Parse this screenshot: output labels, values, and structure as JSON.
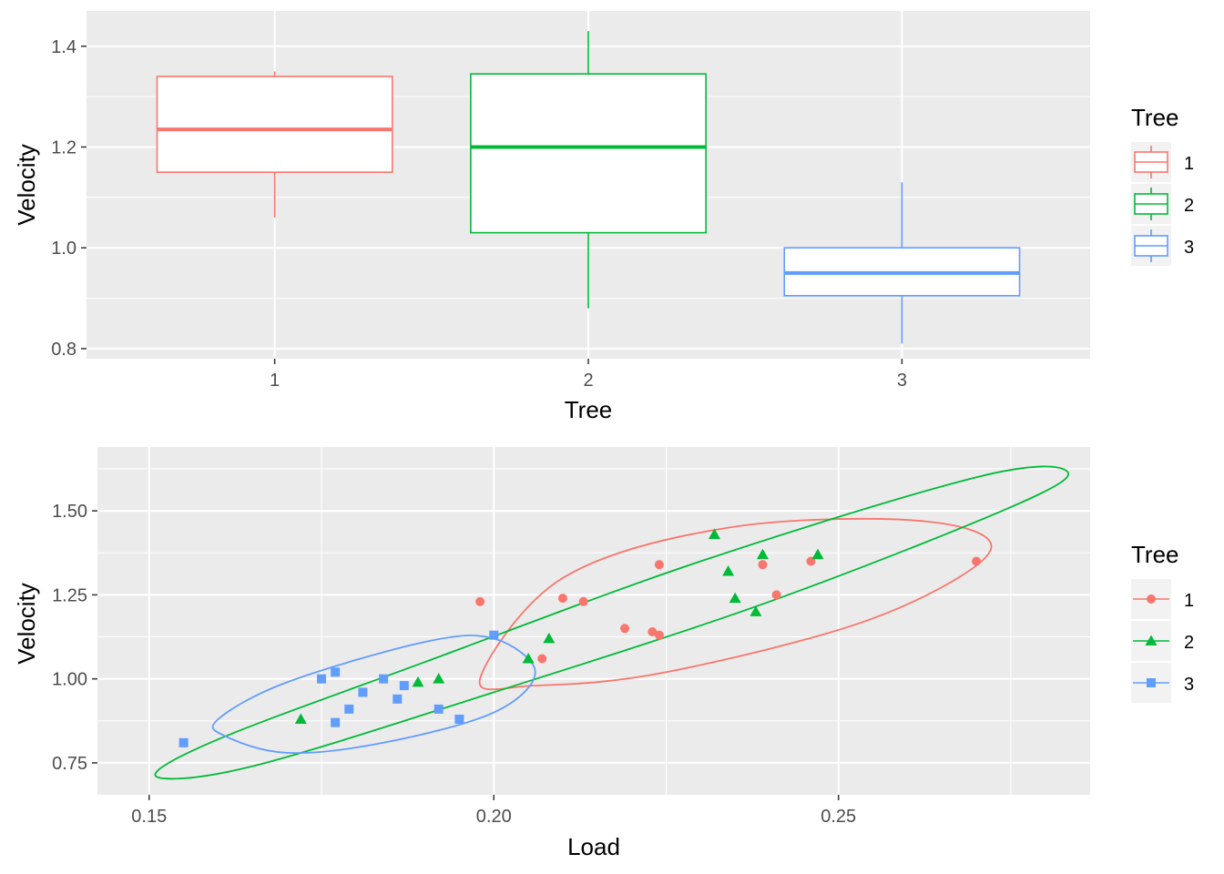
{
  "colors": {
    "1": "#F8766D",
    "2": "#00BA38",
    "3": "#619CFF",
    "panel": "#EBEBEB",
    "grid": "#FFFFFF",
    "axis_text": "#4D4D4D"
  },
  "chart_data": [
    {
      "type": "box",
      "xlabel": "Tree",
      "ylabel": "Velocity",
      "categories": [
        "1",
        "2",
        "3"
      ],
      "ylim": [
        0.78,
        1.47
      ],
      "y_ticks": [
        {
          "value": 0.8,
          "label": "0.8"
        },
        {
          "value": 1.0,
          "label": "1.0"
        },
        {
          "value": 1.2,
          "label": "1.2"
        },
        {
          "value": 1.4,
          "label": "1.4"
        }
      ],
      "boxes": [
        {
          "category": "1",
          "min": 1.06,
          "q1": 1.15,
          "median": 1.235,
          "q3": 1.34,
          "max": 1.35
        },
        {
          "category": "2",
          "min": 0.88,
          "q1": 1.03,
          "median": 1.2,
          "q3": 1.345,
          "max": 1.43
        },
        {
          "category": "3",
          "min": 0.81,
          "q1": 0.905,
          "median": 0.95,
          "q3": 1.0,
          "max": 1.13
        }
      ],
      "legend": {
        "title": "Tree",
        "entries": [
          "1",
          "2",
          "3"
        ],
        "position": "right"
      }
    },
    {
      "type": "scatter",
      "xlabel": "Load",
      "ylabel": "Velocity",
      "xlim": [
        0.1425,
        0.2865
      ],
      "ylim": [
        0.655,
        1.69
      ],
      "x_ticks": [
        {
          "value": 0.15,
          "label": "0.15"
        },
        {
          "value": 0.2,
          "label": "0.20"
        },
        {
          "value": 0.25,
          "label": "0.25"
        }
      ],
      "y_ticks": [
        {
          "value": 0.75,
          "label": "0.75"
        },
        {
          "value": 1.0,
          "label": "1.00"
        },
        {
          "value": 1.25,
          "label": "1.25"
        },
        {
          "value": 1.5,
          "label": "1.50"
        }
      ],
      "series": [
        {
          "name": "1",
          "shape": "circle",
          "points": [
            [
              0.198,
              1.23
            ],
            [
              0.207,
              1.06
            ],
            [
              0.21,
              1.24
            ],
            [
              0.213,
              1.23
            ],
            [
              0.219,
              1.15
            ],
            [
              0.223,
              1.14
            ],
            [
              0.224,
              1.13
            ],
            [
              0.224,
              1.34
            ],
            [
              0.239,
              1.34
            ],
            [
              0.241,
              1.25
            ],
            [
              0.246,
              1.35
            ],
            [
              0.27,
              1.35
            ]
          ]
        },
        {
          "name": "2",
          "shape": "triangle",
          "points": [
            [
              0.172,
              0.88
            ],
            [
              0.189,
              0.99
            ],
            [
              0.192,
              1.0
            ],
            [
              0.205,
              1.06
            ],
            [
              0.208,
              1.12
            ],
            [
              0.232,
              1.43
            ],
            [
              0.234,
              1.32
            ],
            [
              0.235,
              1.24
            ],
            [
              0.238,
              1.2
            ],
            [
              0.239,
              1.37
            ],
            [
              0.247,
              1.37
            ]
          ]
        },
        {
          "name": "3",
          "shape": "square",
          "points": [
            [
              0.155,
              0.81
            ],
            [
              0.175,
              1.0
            ],
            [
              0.177,
              0.87
            ],
            [
              0.177,
              1.02
            ],
            [
              0.179,
              0.91
            ],
            [
              0.181,
              0.96
            ],
            [
              0.184,
              1.0
            ],
            [
              0.186,
              0.94
            ],
            [
              0.187,
              0.98
            ],
            [
              0.192,
              0.91
            ],
            [
              0.195,
              0.88
            ],
            [
              0.2,
              1.13
            ]
          ]
        }
      ],
      "ellipses": [
        {
          "name": "1",
          "points": [
            [
              0.198,
              1.0
            ],
            [
              0.21,
              1.3
            ],
            [
              0.234,
              1.45
            ],
            [
              0.262,
              1.47
            ],
            [
              0.272,
              1.38
            ],
            [
              0.255,
              1.18
            ],
            [
              0.225,
              1.02
            ],
            [
              0.206,
              0.98
            ],
            [
              0.198,
              1.0
            ]
          ]
        },
        {
          "name": "2",
          "points": [
            [
              0.151,
              0.71
            ],
            [
              0.16,
              0.82
            ],
            [
              0.19,
              1.05
            ],
            [
              0.23,
              1.35
            ],
            [
              0.27,
              1.6
            ],
            [
              0.283,
              1.62
            ],
            [
              0.276,
              1.52
            ],
            [
              0.24,
              1.23
            ],
            [
              0.2,
              0.96
            ],
            [
              0.165,
              0.74
            ],
            [
              0.151,
              0.71
            ]
          ]
        },
        {
          "name": "3",
          "points": [
            [
              0.16,
              0.88
            ],
            [
              0.17,
              0.99
            ],
            [
              0.19,
              1.11
            ],
            [
              0.2,
              1.12
            ],
            [
              0.206,
              1.02
            ],
            [
              0.2,
              0.9
            ],
            [
              0.184,
              0.81
            ],
            [
              0.17,
              0.78
            ],
            [
              0.161,
              0.83
            ],
            [
              0.16,
              0.88
            ]
          ]
        }
      ],
      "legend": {
        "title": "Tree",
        "entries": [
          "1",
          "2",
          "3"
        ],
        "position": "right"
      }
    }
  ]
}
